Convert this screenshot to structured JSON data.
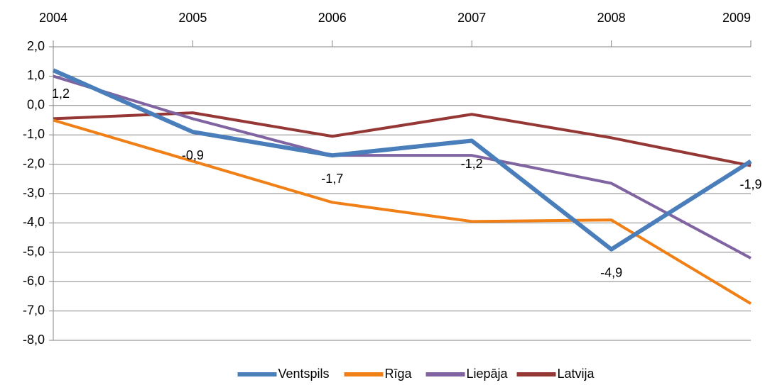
{
  "chart_data": {
    "type": "line",
    "categories": [
      "2004",
      "2005",
      "2006",
      "2007",
      "2008",
      "2009"
    ],
    "series": [
      {
        "name": "Ventspils",
        "color": "#4a7ebb",
        "values": [
          1.2,
          -0.9,
          -1.7,
          -1.2,
          -4.9,
          -1.9
        ],
        "value_labels": [
          "1,2",
          "-0,9",
          "-1,7",
          "-1,2",
          "-4,9",
          "-1,9"
        ]
      },
      {
        "name": "Rīga",
        "color": "#f07f16",
        "values": [
          -0.5,
          -1.9,
          -3.3,
          -3.95,
          -3.9,
          -6.75
        ]
      },
      {
        "name": "Liepāja",
        "color": "#8064a2",
        "values": [
          1.0,
          -0.45,
          -1.7,
          -1.7,
          -2.65,
          -5.2
        ]
      },
      {
        "name": "Latvija",
        "color": "#953735",
        "values": [
          -0.45,
          -0.25,
          -1.05,
          -0.3,
          -1.1,
          -2.05
        ]
      }
    ],
    "ylim": [
      -8,
      2
    ],
    "yticks": [
      {
        "value": 2,
        "label": "2,0"
      },
      {
        "value": 1,
        "label": "1,0"
      },
      {
        "value": 0,
        "label": "0,0"
      },
      {
        "value": -1,
        "label": "-1,0"
      },
      {
        "value": -2,
        "label": "-2,0"
      },
      {
        "value": -3,
        "label": "-3,0"
      },
      {
        "value": -4,
        "label": "-4,0"
      },
      {
        "value": -5,
        "label": "-5,0"
      },
      {
        "value": -6,
        "label": "-6,0"
      },
      {
        "value": -7,
        "label": "-7,0"
      },
      {
        "value": -8,
        "label": "-8,0"
      }
    ],
    "grid": true,
    "legend": "bottom"
  }
}
